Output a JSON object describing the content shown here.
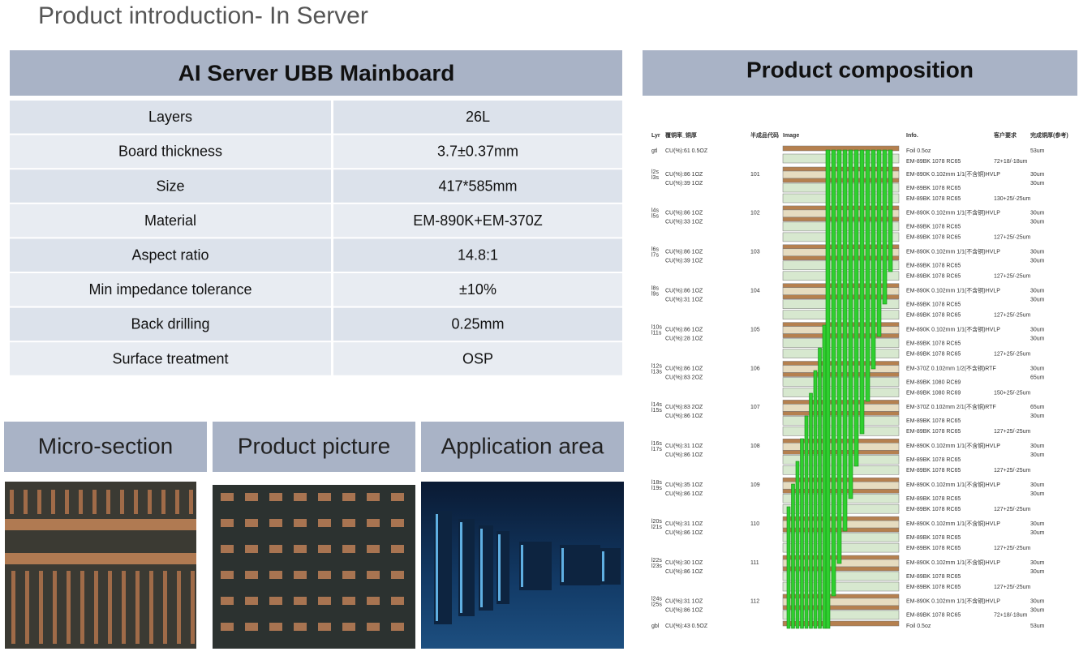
{
  "header": {
    "title": "Product introduction- In Server"
  },
  "spec_table": {
    "title": "AI Server UBB Mainboard",
    "rows": [
      [
        "Layers",
        "26L"
      ],
      [
        "Board thickness",
        "3.7±0.37mm"
      ],
      [
        "Size",
        "417*585mm"
      ],
      [
        "Material",
        "EM-890K+EM-370Z"
      ],
      [
        "Aspect ratio",
        "14.8:1"
      ],
      [
        "Min impedance tolerance",
        "±10%"
      ],
      [
        "Back drilling",
        "0.25mm"
      ],
      [
        "Surface treatment",
        "OSP"
      ]
    ]
  },
  "panels": [
    {
      "label": "Micro-section"
    },
    {
      "label": "Product picture"
    },
    {
      "label": "Application area"
    }
  ],
  "composition": {
    "title": "Product composition",
    "headers": [
      "Lyr",
      "覆铜率_铜厚",
      "半成品代码",
      "Image",
      "Info.",
      "客户要求",
      "完成铜厚(参考)"
    ],
    "top": {
      "layer": "gtl",
      "cu": "CU(%):61  0.5OZ",
      "info": "Foil 0.5oz",
      "thick": "53um",
      "pp": "EM-89BK 1078 RC65",
      "req": "72+18/-18um"
    },
    "cores": [
      {
        "layers": [
          "l2s",
          "l3s"
        ],
        "cu": [
          "CU(%):86  1OZ",
          "CU(%):39  1OZ"
        ],
        "code": "101",
        "core": "EM-890K 0.102mm 1/1(不含铜)HVLP",
        "thick": [
          "30um",
          "30um"
        ],
        "pp": [
          "EM-89BK 1078 RC65",
          "EM-89BK 1078 RC65"
        ],
        "req": "130+25/-25um"
      },
      {
        "layers": [
          "l4s",
          "l5s"
        ],
        "cu": [
          "CU(%):86  1OZ",
          "CU(%):33  1OZ"
        ],
        "code": "102",
        "core": "EM-890K 0.102mm 1/1(不含铜)HVLP",
        "thick": [
          "30um",
          "30um"
        ],
        "pp": [
          "EM-89BK 1078 RC65",
          "EM-89BK 1078 RC65"
        ],
        "req": "127+25/-25um"
      },
      {
        "layers": [
          "l6s",
          "l7s"
        ],
        "cu": [
          "CU(%):86  1OZ",
          "CU(%):39  1OZ"
        ],
        "code": "103",
        "core": "EM-890K 0.102mm 1/1(不含铜)HVLP",
        "thick": [
          "30um",
          "30um"
        ],
        "pp": [
          "EM-89BK 1078 RC65",
          "EM-89BK 1078 RC65"
        ],
        "req": "127+25/-25um"
      },
      {
        "layers": [
          "l8s",
          "l9s"
        ],
        "cu": [
          "CU(%):86  1OZ",
          "CU(%):31  1OZ"
        ],
        "code": "104",
        "core": "EM-890K 0.102mm 1/1(不含铜)HVLP",
        "thick": [
          "30um",
          "30um"
        ],
        "pp": [
          "EM-89BK 1078 RC65",
          "EM-89BK 1078 RC65"
        ],
        "req": "127+25/-25um"
      },
      {
        "layers": [
          "l10s",
          "l11s"
        ],
        "cu": [
          "CU(%):86  1OZ",
          "CU(%):28  1OZ"
        ],
        "code": "105",
        "core": "EM-890K 0.102mm 1/1(不含铜)HVLP",
        "thick": [
          "30um",
          "30um"
        ],
        "pp": [
          "EM-89BK 1078 RC65",
          "EM-89BK 1078 RC65"
        ],
        "req": "127+25/-25um"
      },
      {
        "layers": [
          "l12s",
          "l13s"
        ],
        "cu": [
          "CU(%):86  1OZ",
          "CU(%):83  2OZ"
        ],
        "code": "106",
        "core": "EM-370Z 0.102mm 1/2(不含铜)RTF",
        "thick": [
          "30um",
          "65um"
        ],
        "pp": [
          "EM-89BK 1080 RC69",
          "EM-89BK 1080 RC69"
        ],
        "req": "150+25/-25um"
      },
      {
        "layers": [
          "l14s",
          "l15s"
        ],
        "cu": [
          "CU(%):83  2OZ",
          "CU(%):86  1OZ"
        ],
        "code": "107",
        "core": "EM-370Z 0.102mm 2/1(不含铜)RTF",
        "thick": [
          "65um",
          "30um"
        ],
        "pp": [
          "EM-89BK 1078 RC65",
          "EM-89BK 1078 RC65"
        ],
        "req": "127+25/-25um"
      },
      {
        "layers": [
          "l16s",
          "l17s"
        ],
        "cu": [
          "CU(%):31  1OZ",
          "CU(%):86  1OZ"
        ],
        "code": "108",
        "core": "EM-890K 0.102mm 1/1(不含铜)HVLP",
        "thick": [
          "30um",
          "30um"
        ],
        "pp": [
          "EM-89BK 1078 RC65",
          "EM-89BK 1078 RC65"
        ],
        "req": "127+25/-25um"
      },
      {
        "layers": [
          "l18s",
          "l19s"
        ],
        "cu": [
          "CU(%):35  1OZ",
          "CU(%):86  1OZ"
        ],
        "code": "109",
        "core": "EM-890K 0.102mm 1/1(不含铜)HVLP",
        "thick": [
          "30um",
          "30um"
        ],
        "pp": [
          "EM-89BK 1078 RC65",
          "EM-89BK 1078 RC65"
        ],
        "req": "127+25/-25um"
      },
      {
        "layers": [
          "l20s",
          "l21s"
        ],
        "cu": [
          "CU(%):31  1OZ",
          "CU(%):86  1OZ"
        ],
        "code": "110",
        "core": "EM-890K 0.102mm 1/1(不含铜)HVLP",
        "thick": [
          "30um",
          "30um"
        ],
        "pp": [
          "EM-89BK 1078 RC65",
          "EM-89BK 1078 RC65"
        ],
        "req": "127+25/-25um"
      },
      {
        "layers": [
          "l22s",
          "l23s"
        ],
        "cu": [
          "CU(%):30  1OZ",
          "CU(%):86  1OZ"
        ],
        "code": "111",
        "core": "EM-890K 0.102mm 1/1(不含铜)HVLP",
        "thick": [
          "30um",
          "30um"
        ],
        "pp": [
          "EM-89BK 1078 RC65",
          "EM-89BK 1078 RC65"
        ],
        "req": "127+25/-25um"
      },
      {
        "layers": [
          "l24s",
          "l25s"
        ],
        "cu": [
          "CU(%):31  1OZ",
          "CU(%):86  1OZ"
        ],
        "code": "112",
        "core": "EM-890K 0.102mm 1/1(不含铜)HVLP",
        "thick": [
          "30um",
          "30um"
        ],
        "pp": [
          "EM-89BK 1078 RC65"
        ],
        "req": "72+18/-18um"
      }
    ],
    "bottom": {
      "layer": "gbl",
      "cu": "CU(%):43  0.5OZ",
      "info": "Foil 0.5oz",
      "thick": "53um"
    }
  }
}
